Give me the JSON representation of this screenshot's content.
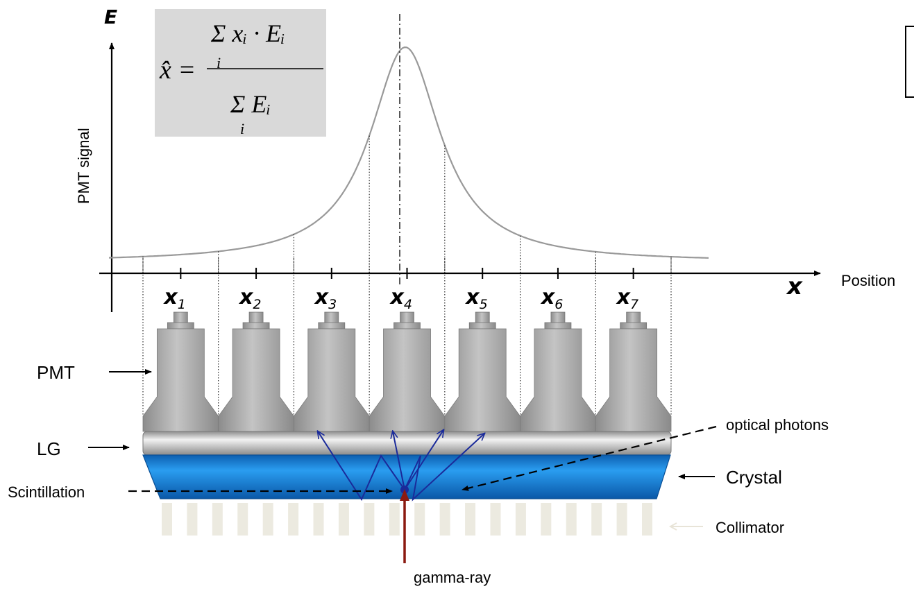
{
  "axes": {
    "y_label": "PMT signal",
    "y_symbol": "E",
    "x_label": "Position",
    "x_symbol": "x"
  },
  "formula": {
    "lhs": "x̂ =",
    "numerator": "Σ xᵢ · Eᵢ",
    "numerator_index": "i",
    "denominator": "Σ Eᵢ",
    "denominator_index": "i"
  },
  "positions": [
    {
      "base": "x",
      "sub": "1"
    },
    {
      "base": "x",
      "sub": "2"
    },
    {
      "base": "x",
      "sub": "3"
    },
    {
      "base": "x",
      "sub": "4"
    },
    {
      "base": "x",
      "sub": "5"
    },
    {
      "base": "x",
      "sub": "6"
    },
    {
      "base": "x",
      "sub": "7"
    }
  ],
  "labels": {
    "pmt": "PMT",
    "lg": "LG",
    "scintillation": "Scintillation",
    "optical_photons": "optical photons",
    "crystal": "Crystal",
    "collimator": "Collimator",
    "gamma_ray": "gamma-ray"
  },
  "colors": {
    "crystal": "#1e8fe0",
    "photon_arrows": "#1a2a9a",
    "gamma_arrow": "#8b1a10",
    "formula_box": "#d9d9d9",
    "curve": "#999999"
  }
}
